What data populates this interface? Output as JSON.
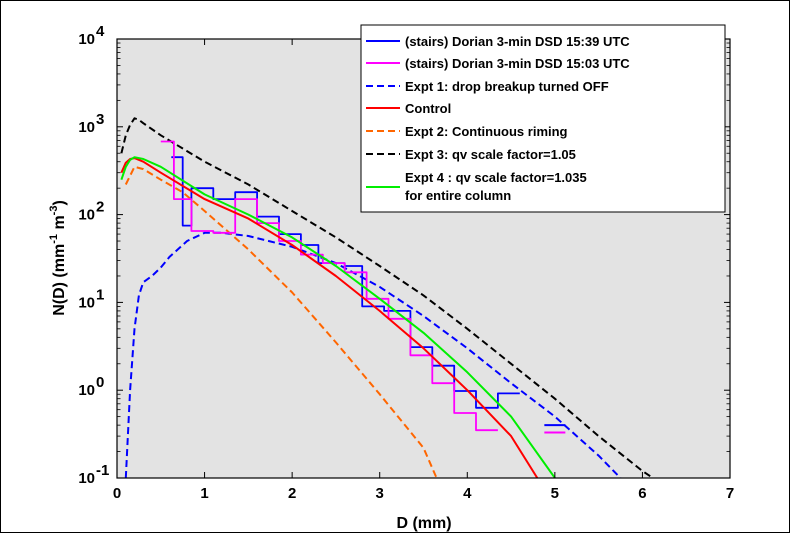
{
  "chart_data": {
    "type": "line",
    "xlabel": "D  (mm)",
    "ylabel_main": "N(D)  (mm",
    "ylabel_exp1": "-1",
    "ylabel_mid": " m",
    "ylabel_exp2": "-3",
    "ylabel_end": ")",
    "xlim": [
      0,
      7
    ],
    "ylim_log10": [
      -1,
      4
    ],
    "y_scale": "log",
    "grid": false,
    "legend_position": "top-right",
    "background_color": "#e3e3e3",
    "x_ticks": [
      {
        "value": 0,
        "label": "0"
      },
      {
        "value": 1,
        "label": "1"
      },
      {
        "value": 2,
        "label": "2"
      },
      {
        "value": 3,
        "label": "3"
      },
      {
        "value": 4,
        "label": "4"
      },
      {
        "value": 5,
        "label": "5"
      },
      {
        "value": 6,
        "label": "6"
      },
      {
        "value": 7,
        "label": "7"
      }
    ],
    "y_ticks": [
      {
        "exp": -1,
        "base": "10",
        "sup": "-1"
      },
      {
        "exp": 0,
        "base": "10",
        "sup": "0"
      },
      {
        "exp": 1,
        "base": "10",
        "sup": "1"
      },
      {
        "exp": 2,
        "base": "10",
        "sup": "2"
      },
      {
        "exp": 3,
        "base": "10",
        "sup": "3"
      },
      {
        "exp": 4,
        "base": "10",
        "sup": "4"
      }
    ],
    "series": [
      {
        "name": "(stairs) Dorian 3-min DSD  15:39 UTC",
        "color": "#0000ff",
        "dash": "solid",
        "kind": "stairs",
        "points": [
          [
            0.62,
            450
          ],
          [
            0.75,
            450
          ],
          [
            0.75,
            75
          ],
          [
            0.85,
            75
          ],
          [
            0.85,
            200
          ],
          [
            1.1,
            200
          ],
          [
            1.1,
            150
          ],
          [
            1.35,
            150
          ],
          [
            1.35,
            180
          ],
          [
            1.6,
            180
          ],
          [
            1.6,
            95
          ],
          [
            1.85,
            95
          ],
          [
            1.85,
            60
          ],
          [
            2.1,
            60
          ],
          [
            2.1,
            45
          ],
          [
            2.3,
            45
          ],
          [
            2.3,
            28
          ],
          [
            2.6,
            28
          ],
          [
            2.6,
            26
          ],
          [
            2.8,
            26
          ],
          [
            2.8,
            9
          ],
          [
            3.05,
            9
          ],
          [
            3.05,
            8
          ],
          [
            3.35,
            8
          ],
          [
            3.35,
            3.1
          ],
          [
            3.6,
            3.1
          ],
          [
            3.6,
            1.9
          ],
          [
            3.85,
            1.9
          ],
          [
            3.85,
            0.98
          ],
          [
            4.1,
            0.98
          ],
          [
            4.1,
            0.63
          ],
          [
            4.35,
            0.63
          ],
          [
            4.35,
            0.92
          ],
          [
            4.6,
            0.92
          ]
        ]
      },
      {
        "name": "(stairs) Dorian 3-min  DSD  15:03 UTC",
        "color": "#ff00ff",
        "dash": "solid",
        "kind": "stairs",
        "points": [
          [
            0.5,
            680
          ],
          [
            0.65,
            680
          ],
          [
            0.65,
            150
          ],
          [
            0.85,
            150
          ],
          [
            0.85,
            65
          ],
          [
            1.1,
            65
          ],
          [
            1.1,
            62
          ],
          [
            1.35,
            62
          ],
          [
            1.35,
            150
          ],
          [
            1.6,
            150
          ],
          [
            1.6,
            80
          ],
          [
            1.85,
            80
          ],
          [
            1.85,
            50
          ],
          [
            2.1,
            50
          ],
          [
            2.1,
            35
          ],
          [
            2.35,
            35
          ],
          [
            2.35,
            28
          ],
          [
            2.6,
            28
          ],
          [
            2.6,
            22
          ],
          [
            2.85,
            22
          ],
          [
            2.85,
            11
          ],
          [
            3.1,
            11
          ],
          [
            3.1,
            6.5
          ],
          [
            3.35,
            6.5
          ],
          [
            3.35,
            2.5
          ],
          [
            3.6,
            2.5
          ],
          [
            3.6,
            1.2
          ],
          [
            3.85,
            1.2
          ],
          [
            3.85,
            0.55
          ],
          [
            4.1,
            0.55
          ],
          [
            4.1,
            0.35
          ],
          [
            4.35,
            0.35
          ]
        ]
      },
      {
        "name": "Expt 1: drop breakup turned OFF",
        "color": "#0000ff",
        "dash": "dashed",
        "kind": "line",
        "points": [
          [
            0.1,
            0.1
          ],
          [
            0.15,
            1
          ],
          [
            0.2,
            5
          ],
          [
            0.25,
            12
          ],
          [
            0.3,
            17
          ],
          [
            0.4,
            20
          ],
          [
            0.5,
            25
          ],
          [
            0.6,
            33
          ],
          [
            0.8,
            50
          ],
          [
            1.0,
            62
          ],
          [
            1.2,
            62
          ],
          [
            1.5,
            57
          ],
          [
            2.0,
            43
          ],
          [
            2.5,
            28
          ],
          [
            3.0,
            15
          ],
          [
            3.5,
            7
          ],
          [
            4.0,
            3
          ],
          [
            4.5,
            1.2
          ],
          [
            5.0,
            0.5
          ],
          [
            5.5,
            0.18
          ],
          [
            5.75,
            0.1
          ]
        ]
      },
      {
        "name": "Control",
        "color": "#ff0000",
        "dash": "solid",
        "kind": "line",
        "points": [
          [
            0.05,
            300
          ],
          [
            0.1,
            390
          ],
          [
            0.15,
            430
          ],
          [
            0.2,
            440
          ],
          [
            0.3,
            400
          ],
          [
            0.5,
            300
          ],
          [
            1.0,
            150
          ],
          [
            1.5,
            90
          ],
          [
            2.0,
            45
          ],
          [
            2.5,
            20
          ],
          [
            3.0,
            8
          ],
          [
            3.5,
            3
          ],
          [
            4.0,
            1
          ],
          [
            4.5,
            0.3
          ],
          [
            4.8,
            0.1
          ]
        ]
      },
      {
        "name": "Expt  2: Continuous riming",
        "color": "#ff6600",
        "dash": "dashed",
        "kind": "line",
        "points": [
          [
            0.1,
            220
          ],
          [
            0.2,
            350
          ],
          [
            0.3,
            330
          ],
          [
            0.5,
            250
          ],
          [
            0.75,
            180
          ],
          [
            1.0,
            110
          ],
          [
            1.5,
            40
          ],
          [
            2.0,
            13
          ],
          [
            2.5,
            3.5
          ],
          [
            3.0,
            0.9
          ],
          [
            3.5,
            0.22
          ],
          [
            3.65,
            0.1
          ]
        ]
      },
      {
        "name": "Expt  3: qv scale factor=1.05",
        "color": "#000000",
        "dash": "dashed",
        "kind": "line",
        "points": [
          [
            0.05,
            500
          ],
          [
            0.1,
            800
          ],
          [
            0.15,
            1050
          ],
          [
            0.2,
            1250
          ],
          [
            0.25,
            1200
          ],
          [
            0.3,
            1100
          ],
          [
            0.5,
            800
          ],
          [
            1.0,
            400
          ],
          [
            1.5,
            220
          ],
          [
            2.0,
            110
          ],
          [
            2.5,
            55
          ],
          [
            3.0,
            26
          ],
          [
            3.5,
            12
          ],
          [
            4.0,
            5
          ],
          [
            4.5,
            2
          ],
          [
            5.0,
            0.8
          ],
          [
            5.5,
            0.3
          ],
          [
            6.0,
            0.12
          ],
          [
            6.12,
            0.1
          ]
        ]
      },
      {
        "name_line1": "Expt 4 : qv scale factor=1.035",
        "name_line2": "for entire column",
        "color": "#00ee00",
        "dash": "solid",
        "kind": "line",
        "points": [
          [
            0.05,
            250
          ],
          [
            0.1,
            350
          ],
          [
            0.15,
            420
          ],
          [
            0.2,
            450
          ],
          [
            0.3,
            430
          ],
          [
            0.5,
            350
          ],
          [
            1.0,
            170
          ],
          [
            1.5,
            100
          ],
          [
            2.0,
            55
          ],
          [
            2.5,
            26
          ],
          [
            3.0,
            11
          ],
          [
            3.5,
            4.5
          ],
          [
            4.0,
            1.6
          ],
          [
            4.5,
            0.5
          ],
          [
            5.0,
            0.1
          ]
        ]
      }
    ],
    "stray_marks": [
      {
        "color": "#0000ff",
        "x0": 4.88,
        "x1": 5.12,
        "y": 0.4
      },
      {
        "color": "#ff00ff",
        "x0": 4.88,
        "x1": 5.12,
        "y": 0.33
      }
    ]
  }
}
